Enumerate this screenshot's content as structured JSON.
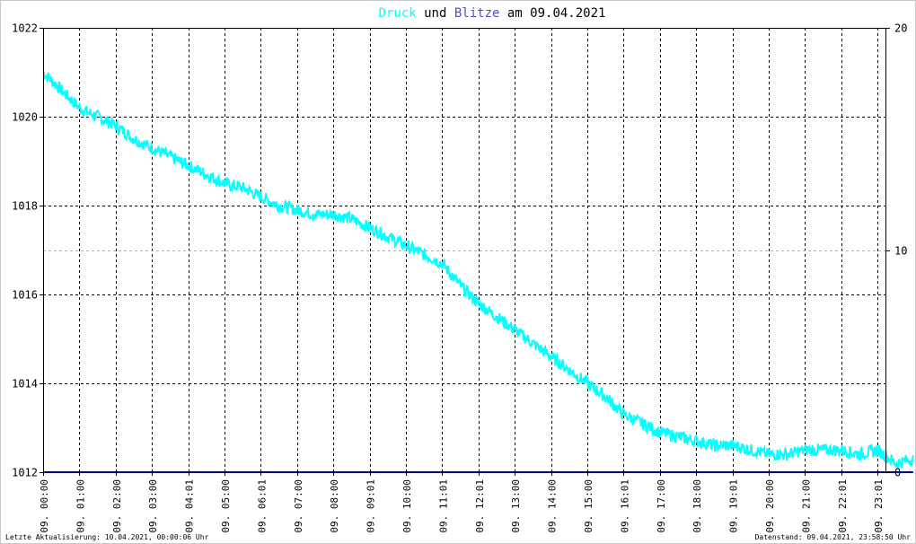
{
  "chart_data": {
    "type": "line",
    "title": {
      "part1": "Druck",
      "part2": " und ",
      "part3": "Blitze",
      "part4": " am 09.04.2021"
    },
    "colors": {
      "pressure": "#00ffff",
      "lightning": "#5050c8",
      "baseline": "#000080",
      "title_text": "#000000"
    },
    "x_ticks": [
      "09. 00:00",
      "09. 01:00",
      "09. 02:00",
      "09. 03:00",
      "09. 04:01",
      "09. 05:00",
      "09. 06:01",
      "09. 07:00",
      "09. 08:00",
      "09. 09:01",
      "09. 10:00",
      "09. 11:01",
      "09. 12:01",
      "09. 13:00",
      "09. 14:00",
      "09. 15:00",
      "09. 16:01",
      "09. 17:00",
      "09. 18:00",
      "09. 19:01",
      "09. 20:00",
      "09. 21:00",
      "09. 22:01",
      "09. 23:01"
    ],
    "y_left": {
      "ticks": [
        "1012",
        "1014",
        "1016",
        "1018",
        "1020",
        "1022"
      ],
      "range": [
        1012,
        1022
      ]
    },
    "y_right": {
      "ticks": [
        "0",
        "10",
        "20"
      ],
      "range": [
        0,
        20
      ]
    },
    "grid": true,
    "series": [
      {
        "name": "Druck",
        "axis": "left",
        "x_hours": [
          0,
          0.5,
          1,
          1.5,
          2,
          2.5,
          3,
          3.5,
          4,
          4.5,
          5,
          5.5,
          6,
          6.5,
          7,
          7.5,
          8,
          8.5,
          9,
          9.5,
          10,
          10.5,
          11,
          11.5,
          12,
          12.5,
          13,
          13.5,
          14,
          14.5,
          15,
          15.5,
          16,
          16.5,
          17,
          17.5,
          18,
          18.5,
          19,
          19.5,
          20,
          20.5,
          21,
          21.5,
          22,
          22.5,
          23,
          23.5,
          23.98
        ],
        "values": [
          1021.0,
          1020.6,
          1020.2,
          1020.0,
          1019.8,
          1019.5,
          1019.3,
          1019.1,
          1018.9,
          1018.7,
          1018.5,
          1018.4,
          1018.2,
          1018.0,
          1017.9,
          1017.8,
          1017.8,
          1017.7,
          1017.5,
          1017.3,
          1017.1,
          1016.9,
          1016.7,
          1016.2,
          1015.8,
          1015.5,
          1015.2,
          1014.9,
          1014.6,
          1014.3,
          1014.0,
          1013.7,
          1013.3,
          1013.1,
          1012.9,
          1012.8,
          1012.7,
          1012.6,
          1012.6,
          1012.5,
          1012.4,
          1012.4,
          1012.5,
          1012.5,
          1012.5,
          1012.4,
          1012.5,
          1012.2,
          1012.3
        ]
      },
      {
        "name": "Blitze",
        "axis": "right",
        "x_hours": [
          0,
          23.98
        ],
        "values": [
          0,
          0
        ]
      }
    ]
  },
  "footer": {
    "left": "Letzte Aktualisierung: 10.04.2021, 00:00:06 Uhr",
    "right": "Datenstand: 09.04.2021, 23:58:50 Uhr"
  }
}
